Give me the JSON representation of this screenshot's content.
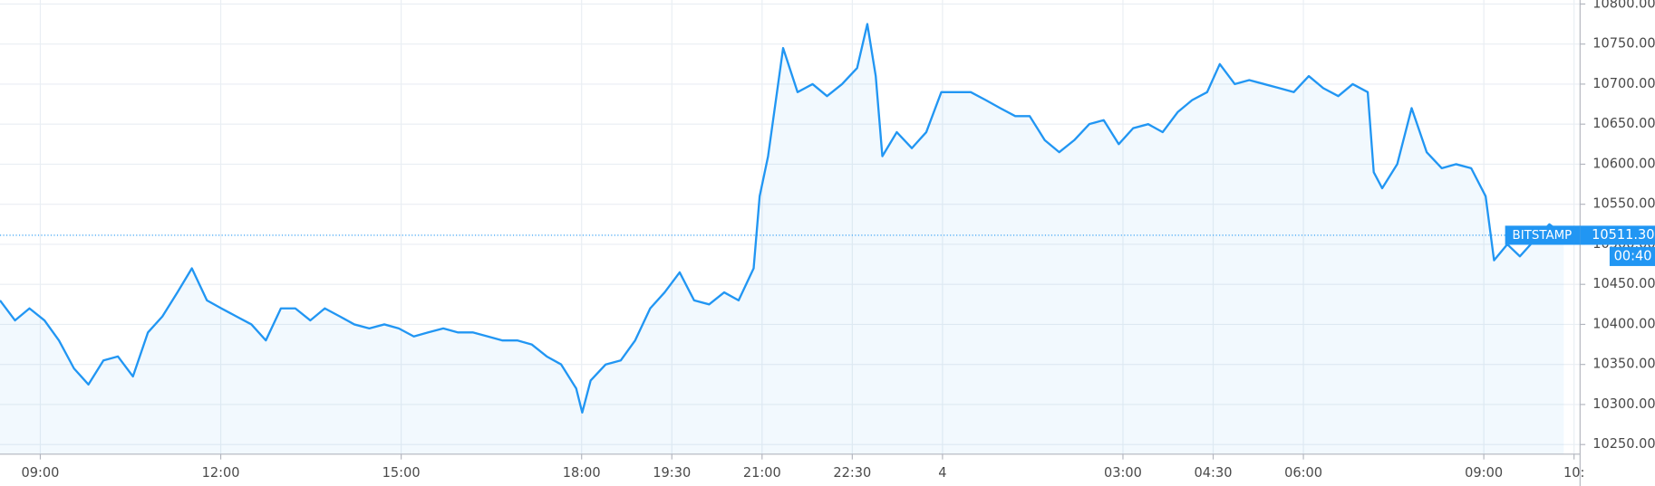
{
  "chart_data": {
    "type": "area",
    "x": [
      8.33,
      8.58,
      8.82,
      9.07,
      9.31,
      9.56,
      9.8,
      10.05,
      10.29,
      10.54,
      10.79,
      11.03,
      11.28,
      11.52,
      11.77,
      12.01,
      12.26,
      12.51,
      12.75,
      13.0,
      13.24,
      13.49,
      13.73,
      13.98,
      14.22,
      14.47,
      14.72,
      14.96,
      15.21,
      15.45,
      15.7,
      15.94,
      16.19,
      16.44,
      16.68,
      16.93,
      17.17,
      17.42,
      17.66,
      17.91,
      18.01,
      18.15,
      18.4,
      18.65,
      18.89,
      19.14,
      19.38,
      19.63,
      19.87,
      20.12,
      20.37,
      20.61,
      20.86,
      20.96,
      21.1,
      21.35,
      21.59,
      21.84,
      22.08,
      22.33,
      22.58,
      22.75,
      22.89,
      23.0,
      23.24,
      23.49,
      23.73,
      23.98,
      24.22,
      24.47,
      24.72,
      24.96,
      25.21,
      25.45,
      25.7,
      25.94,
      26.19,
      26.44,
      26.68,
      26.93,
      27.17,
      27.42,
      27.66,
      27.91,
      28.15,
      28.4,
      28.61,
      28.86,
      29.1,
      29.35,
      29.6,
      29.84,
      30.09,
      30.33,
      30.58,
      30.82,
      31.07,
      31.17,
      31.31,
      31.56,
      31.8,
      32.05,
      32.3,
      32.54,
      32.79,
      33.03,
      33.17,
      33.39,
      33.6,
      33.84,
      34.09,
      34.33
    ],
    "series": [
      {
        "name": "BITSTAMP",
        "color": "#2196f3",
        "values": [
          10430,
          10405,
          10420,
          10405,
          10380,
          10345,
          10325,
          10355,
          10360,
          10335,
          10390,
          10410,
          10440,
          10470,
          10430,
          10420,
          10410,
          10400,
          10380,
          10420,
          10420,
          10405,
          10420,
          10410,
          10400,
          10395,
          10400,
          10395,
          10385,
          10390,
          10395,
          10390,
          10390,
          10385,
          10380,
          10380,
          10375,
          10360,
          10350,
          10320,
          10290,
          10330,
          10350,
          10355,
          10380,
          10420,
          10440,
          10465,
          10430,
          10425,
          10440,
          10430,
          10470,
          10560,
          10610,
          10745,
          10690,
          10700,
          10685,
          10700,
          10720,
          10775,
          10710,
          10610,
          10640,
          10620,
          10640,
          10690,
          10690,
          10690,
          10680,
          10670,
          10660,
          10660,
          10630,
          10615,
          10630,
          10650,
          10655,
          10625,
          10645,
          10650,
          10640,
          10665,
          10680,
          10690,
          10725,
          10700,
          10705,
          10700,
          10695,
          10690,
          10710,
          10695,
          10685,
          10700,
          10690,
          10590,
          10570,
          10600,
          10670,
          10615,
          10595,
          10600,
          10595,
          10560,
          10480,
          10500,
          10485,
          10505,
          10525,
          10511.3
        ]
      }
    ],
    "xlim": [
      8.33,
      34.6
    ],
    "xticks": [
      {
        "value": 9,
        "label": "09:00"
      },
      {
        "value": 12,
        "label": "12:00"
      },
      {
        "value": 15,
        "label": "15:00"
      },
      {
        "value": 18,
        "label": "18:00"
      },
      {
        "value": 19.5,
        "label": "19:30"
      },
      {
        "value": 21,
        "label": "21:00"
      },
      {
        "value": 22.5,
        "label": "22:30"
      },
      {
        "value": 24,
        "label": "4"
      },
      {
        "value": 27,
        "label": "03:00"
      },
      {
        "value": 28.5,
        "label": "04:30"
      },
      {
        "value": 30,
        "label": "06:00"
      },
      {
        "value": 33,
        "label": "09:00"
      },
      {
        "value": 34.5,
        "label": "10:"
      }
    ],
    "ylim": [
      10238,
      10805
    ],
    "yticks": [
      {
        "value": 10250,
        "label": "10250.00"
      },
      {
        "value": 10300,
        "label": "10300.00"
      },
      {
        "value": 10350,
        "label": "10350.00"
      },
      {
        "value": 10400,
        "label": "10400.00"
      },
      {
        "value": 10450,
        "label": "10450.00"
      },
      {
        "value": 10500,
        "label": "10500.00"
      },
      {
        "value": 10550,
        "label": "10550.00"
      },
      {
        "value": 10600,
        "label": "10600.00"
      },
      {
        "value": 10650,
        "label": "10650.00"
      },
      {
        "value": 10700,
        "label": "10700.00"
      },
      {
        "value": 10750,
        "label": "10750.00"
      },
      {
        "value": 10800,
        "label": "10800.00"
      }
    ],
    "last_price": {
      "value": 10511.3,
      "label": "10511.30"
    },
    "countdown": "00:40",
    "grid": true
  }
}
